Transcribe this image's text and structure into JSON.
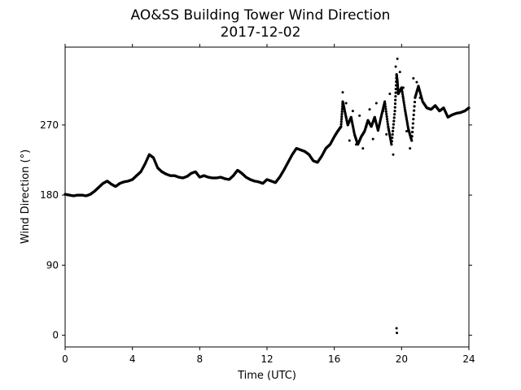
{
  "chart_data": {
    "type": "scatter",
    "title": "AO&SS Building Tower Wind Direction",
    "subtitle": "2017-12-02",
    "xlabel": "Time (UTC)",
    "ylabel": "Wind Direction (°)",
    "xlim": [
      0,
      24
    ],
    "ylim": [
      -15,
      370
    ],
    "x_ticks": [
      0,
      4,
      8,
      12,
      16,
      20,
      24
    ],
    "y_ticks": [
      0,
      90,
      180,
      270
    ],
    "grid": false,
    "legend": "none",
    "marker_color": "#000000",
    "series": [
      {
        "x": [
          0.0,
          0.25,
          0.5,
          0.75,
          1.0,
          1.25,
          1.5,
          1.75,
          2.0,
          2.25,
          2.5,
          2.75,
          3.0,
          3.25,
          3.5,
          3.75,
          4.0,
          4.25,
          4.5,
          4.75,
          5.0,
          5.25,
          5.5,
          5.75,
          6.0,
          6.25,
          6.5,
          6.75,
          7.0,
          7.25,
          7.5,
          7.75,
          8.0,
          8.25,
          8.5,
          8.75,
          9.0,
          9.25,
          9.5,
          9.75,
          10.0,
          10.25,
          10.5,
          10.75,
          11.0,
          11.25,
          11.5,
          11.75,
          12.0,
          12.25,
          12.5,
          12.75,
          13.0,
          13.25,
          13.5,
          13.75,
          14.0,
          14.25,
          14.5,
          14.75,
          15.0,
          15.25,
          15.5,
          15.75,
          16.0,
          16.2,
          16.4,
          16.5,
          16.6,
          16.8,
          17.0,
          17.2,
          17.4,
          17.6,
          17.8,
          18.0,
          18.2,
          18.4,
          18.6,
          18.8,
          19.0,
          19.2,
          19.4,
          19.6,
          19.7,
          19.75,
          19.8,
          20.0,
          20.2,
          20.4,
          20.6,
          20.8,
          21.0,
          21.25,
          21.5,
          21.75,
          22.0,
          22.25,
          22.5,
          22.75,
          23.0,
          23.25,
          23.5,
          23.75,
          24.0
        ],
        "y": [
          181,
          180,
          179,
          180,
          180,
          179,
          181,
          185,
          190,
          195,
          198,
          194,
          191,
          195,
          197,
          198,
          200,
          205,
          210,
          220,
          232,
          228,
          215,
          210,
          207,
          205,
          205,
          203,
          202,
          204,
          208,
          210,
          203,
          205,
          203,
          202,
          202,
          203,
          201,
          200,
          205,
          212,
          208,
          203,
          200,
          198,
          197,
          195,
          200,
          198,
          196,
          203,
          212,
          222,
          232,
          240,
          238,
          236,
          232,
          224,
          222,
          230,
          240,
          245,
          255,
          262,
          268,
          300,
          290,
          270,
          280,
          258,
          245,
          255,
          262,
          276,
          268,
          280,
          263,
          282,
          300,
          268,
          245,
          288,
          335,
          325,
          310,
          318,
          290,
          265,
          250,
          305,
          320,
          300,
          292,
          290,
          295,
          288,
          292,
          280,
          283,
          285,
          286,
          288,
          292
        ]
      },
      {
        "x": [
          16.5,
          16.7,
          16.9,
          17.1,
          17.3,
          17.5,
          17.7,
          17.9,
          18.1,
          18.3,
          18.5,
          18.7,
          18.9,
          19.1,
          19.3,
          19.5,
          19.65,
          19.75,
          19.9,
          20.1,
          20.3,
          20.5,
          20.7,
          20.9,
          21.1
        ],
        "y": [
          312,
          298,
          250,
          288,
          245,
          282,
          240,
          268,
          290,
          252,
          298,
          272,
          288,
          258,
          310,
          232,
          345,
          355,
          338,
          318,
          262,
          240,
          330,
          325,
          305
        ]
      },
      {
        "x": [
          19.7,
          19.72
        ],
        "y": [
          9,
          3
        ]
      }
    ]
  }
}
